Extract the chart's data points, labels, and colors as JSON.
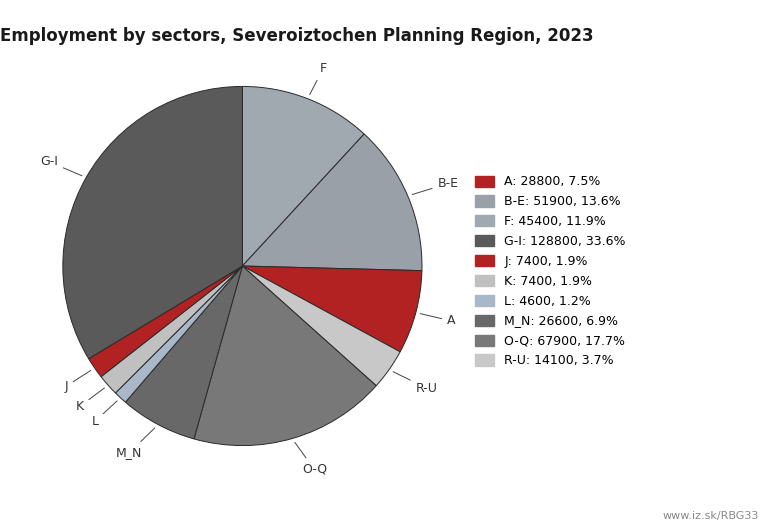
{
  "title": "Employment by sectors, Severoiztochen Planning Region, 2023",
  "sectors_ordered": [
    "F",
    "B-E",
    "A",
    "R-U",
    "O-Q",
    "M_N",
    "L",
    "K",
    "J",
    "G-I"
  ],
  "values_ordered": [
    45400,
    51900,
    28800,
    14100,
    67900,
    26600,
    4600,
    7400,
    7400,
    128800
  ],
  "colors_ordered": [
    "#a0a8b0",
    "#9aa0a8",
    "#b22222",
    "#c8c8c8",
    "#787878",
    "#686868",
    "#a8b8c8",
    "#c0c0c0",
    "#b22222",
    "#5a5a5a"
  ],
  "legend_sectors": [
    "A",
    "B-E",
    "F",
    "G-I",
    "J",
    "K",
    "L",
    "M_N",
    "O-Q",
    "R-U"
  ],
  "legend_values": [
    28800,
    51900,
    45400,
    128800,
    7400,
    7400,
    4600,
    26600,
    67900,
    14100
  ],
  "legend_pcts": [
    "7.5",
    "13.6",
    "11.9",
    "33.6",
    "1.9",
    "1.9",
    "1.2",
    "6.9",
    "17.7",
    "3.7"
  ],
  "legend_colors": [
    "#b22222",
    "#9aa0a8",
    "#a0a8b0",
    "#5a5a5a",
    "#b22222",
    "#c0c0c0",
    "#a8b8c8",
    "#686868",
    "#787878",
    "#c8c8c8"
  ],
  "watermark": "www.iz.sk/RBG33",
  "background_color": "#ffffff",
  "edge_color": "#2a2a2a",
  "label_color": "#333333",
  "title_fontsize": 12,
  "label_fontsize": 9,
  "legend_fontsize": 9
}
